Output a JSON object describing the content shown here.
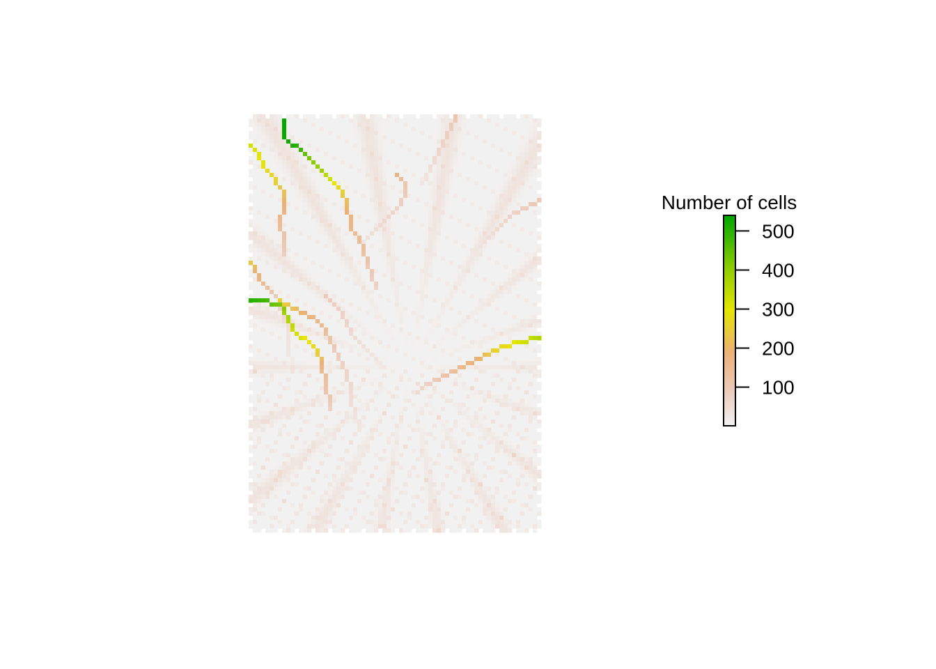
{
  "chart_data": {
    "type": "heatmap",
    "title": "",
    "xlabel": "",
    "ylabel": "",
    "grid": false,
    "raster": {
      "rows": 100,
      "cols": 70,
      "description_value_range": [
        1,
        540
      ]
    },
    "channels": [
      {
        "points": [
          [
            0,
            8
          ],
          [
            5,
            8
          ],
          [
            6,
            9
          ],
          [
            7,
            11
          ],
          [
            8,
            12
          ],
          [
            9,
            13
          ],
          [
            11,
            15
          ],
          [
            13,
            17
          ],
          [
            14,
            18
          ],
          [
            16,
            20
          ],
          [
            17,
            21
          ],
          [
            19,
            22
          ],
          [
            21,
            23
          ],
          [
            23,
            23
          ],
          [
            25,
            24
          ],
          [
            27,
            24
          ],
          [
            28,
            25
          ],
          [
            30,
            26
          ],
          [
            32,
            27
          ],
          [
            35,
            28
          ],
          [
            38,
            29
          ],
          [
            41,
            30
          ]
        ],
        "values": [
          540,
          530,
          520,
          500,
          480,
          440,
          400,
          380,
          350,
          300,
          280,
          240,
          220,
          200,
          180,
          170,
          160,
          150,
          140,
          120,
          100,
          80
        ]
      },
      {
        "points": [
          [
            7,
            0
          ],
          [
            8,
            1
          ],
          [
            10,
            2
          ],
          [
            12,
            3
          ],
          [
            14,
            5
          ],
          [
            16,
            6
          ],
          [
            17,
            7
          ],
          [
            18,
            8
          ],
          [
            20,
            8
          ],
          [
            22,
            8
          ],
          [
            24,
            7
          ],
          [
            26,
            7
          ],
          [
            29,
            8
          ],
          [
            33,
            8
          ]
        ],
        "values": [
          320,
          310,
          300,
          290,
          270,
          260,
          240,
          230,
          210,
          190,
          170,
          150,
          120,
          90
        ]
      },
      {
        "points": [
          [
            35,
            0
          ],
          [
            36,
            1
          ],
          [
            37,
            1
          ],
          [
            39,
            2
          ],
          [
            40,
            3
          ],
          [
            41,
            4
          ],
          [
            42,
            5
          ],
          [
            43,
            6
          ],
          [
            45,
            7
          ],
          [
            48,
            8
          ],
          [
            52,
            9
          ],
          [
            56,
            9
          ],
          [
            60,
            10
          ]
        ],
        "values": [
          240,
          220,
          200,
          180,
          160,
          140,
          120,
          100,
          80,
          60,
          40,
          30,
          20
        ]
      },
      {
        "points": [
          [
            44,
            0
          ],
          [
            44,
            2
          ],
          [
            44,
            4
          ],
          [
            45,
            5
          ],
          [
            45,
            7
          ],
          [
            47,
            8
          ],
          [
            49,
            9
          ],
          [
            52,
            11
          ],
          [
            53,
            13
          ],
          [
            55,
            15
          ],
          [
            57,
            16
          ],
          [
            59,
            17
          ],
          [
            61,
            17
          ],
          [
            63,
            18
          ],
          [
            66,
            18
          ],
          [
            68,
            19
          ],
          [
            70,
            19
          ]
        ],
        "values": [
          500,
          490,
          470,
          440,
          420,
          380,
          360,
          320,
          300,
          280,
          250,
          200,
          160,
          140,
          120,
          100,
          80
        ]
      },
      {
        "points": [
          [
            44,
            7
          ],
          [
            45,
            9
          ],
          [
            46,
            11
          ],
          [
            47,
            13
          ],
          [
            48,
            15
          ],
          [
            50,
            17
          ],
          [
            52,
            18
          ],
          [
            54,
            19
          ],
          [
            56,
            20
          ],
          [
            58,
            21
          ],
          [
            60,
            22
          ],
          [
            62,
            23
          ],
          [
            65,
            24
          ],
          [
            68,
            24
          ],
          [
            71,
            25
          ],
          [
            75,
            26
          ]
        ],
        "values": [
          260,
          240,
          220,
          200,
          180,
          160,
          140,
          120,
          100,
          90,
          80,
          70,
          60,
          50,
          40,
          30
        ]
      },
      {
        "points": [
          [
            43,
            18
          ],
          [
            44,
            19
          ],
          [
            45,
            20
          ],
          [
            46,
            21
          ],
          [
            48,
            22
          ],
          [
            50,
            23
          ],
          [
            52,
            24
          ],
          [
            54,
            26
          ],
          [
            56,
            28
          ],
          [
            58,
            30
          ],
          [
            60,
            31
          ]
        ],
        "values": [
          100,
          95,
          90,
          85,
          80,
          70,
          60,
          50,
          40,
          30,
          20
        ]
      },
      {
        "points": [
          [
            53,
            69
          ],
          [
            53,
            67
          ],
          [
            54,
            65
          ],
          [
            54,
            63
          ],
          [
            55,
            61
          ],
          [
            56,
            58
          ],
          [
            57,
            56
          ],
          [
            58,
            54
          ],
          [
            59,
            52
          ],
          [
            60,
            50
          ],
          [
            61,
            48
          ],
          [
            62,
            46
          ],
          [
            63,
            44
          ],
          [
            64,
            42
          ],
          [
            66,
            40
          ]
        ],
        "values": [
          360,
          340,
          320,
          300,
          280,
          260,
          220,
          200,
          180,
          160,
          140,
          120,
          100,
          80,
          60
        ]
      },
      {
        "points": [
          [
            14,
            35
          ],
          [
            15,
            36
          ],
          [
            16,
            37
          ],
          [
            18,
            37
          ],
          [
            20,
            36
          ],
          [
            22,
            35
          ],
          [
            24,
            33
          ],
          [
            26,
            31
          ],
          [
            28,
            29
          ],
          [
            30,
            27
          ]
        ],
        "values": [
          180,
          150,
          120,
          100,
          90,
          80,
          70,
          60,
          50,
          40
        ]
      },
      {
        "points": [
          [
            0,
            49
          ],
          [
            2,
            48
          ],
          [
            4,
            47
          ],
          [
            6,
            46
          ],
          [
            8,
            45
          ],
          [
            10,
            44
          ],
          [
            12,
            43
          ],
          [
            14,
            42
          ],
          [
            16,
            41
          ]
        ],
        "values": [
          120,
          100,
          90,
          80,
          70,
          60,
          50,
          40,
          30
        ]
      },
      {
        "points": [
          [
            20,
            69
          ],
          [
            21,
            67
          ],
          [
            22,
            65
          ],
          [
            23,
            63
          ],
          [
            25,
            61
          ],
          [
            27,
            59
          ],
          [
            29,
            57
          ],
          [
            31,
            55
          ]
        ],
        "values": [
          110,
          100,
          90,
          80,
          70,
          60,
          50,
          40
        ]
      }
    ],
    "legend": {
      "title": "Number of cells",
      "placement": "right",
      "ticks": [
        100,
        200,
        300,
        400,
        500
      ],
      "tick_labels": [
        "100",
        "200",
        "300",
        "400",
        "500"
      ],
      "range": [
        1,
        540
      ],
      "colors": [
        "#f2f2f2",
        "#ecb176",
        "#e6e600",
        "#00a600"
      ]
    }
  }
}
